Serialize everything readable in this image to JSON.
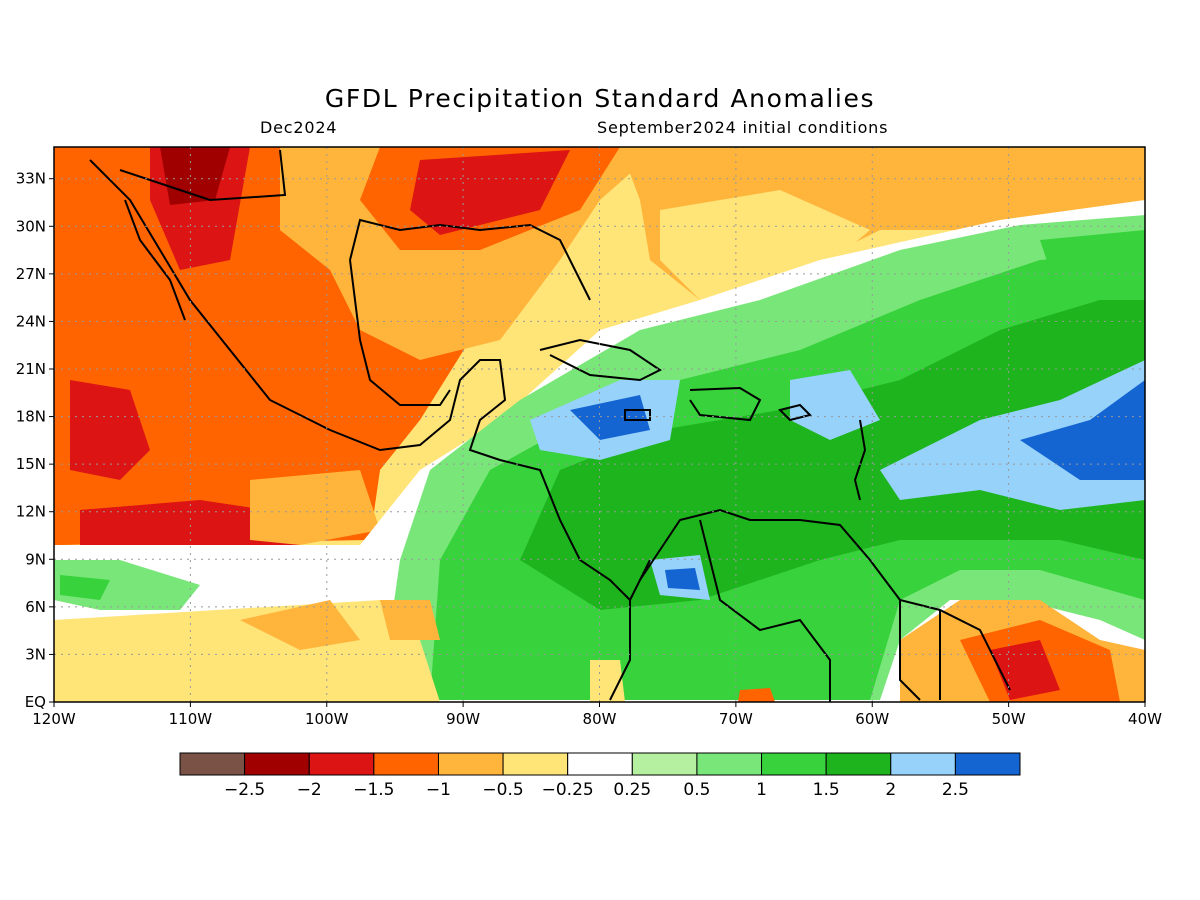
{
  "title": "GFDL Precipitation Standard Anomalies",
  "subtitle_left": "Dec2024",
  "subtitle_right": "September2024 initial conditions",
  "map": {
    "lon_range": [
      -120,
      -40
    ],
    "lat_range": [
      0,
      35
    ],
    "x_ticks": [
      "120W",
      "110W",
      "100W",
      "90W",
      "80W",
      "70W",
      "60W",
      "50W",
      "40W"
    ],
    "y_ticks": [
      "EQ",
      "3N",
      "6N",
      "9N",
      "12N",
      "15N",
      "18N",
      "21N",
      "24N",
      "27N",
      "30N",
      "33N"
    ],
    "grid": "dotted"
  },
  "colorbar": {
    "colors": [
      "#7a5246",
      "#a00000",
      "#dc1414",
      "#ff6400",
      "#ffb43c",
      "#ffe478",
      "#ffffff",
      "#b4f0a0",
      "#78e678",
      "#37d23c",
      "#1eb41e",
      "#96d2fa",
      "#1464d2"
    ],
    "labels": [
      "−2.5",
      "−2",
      "−1.5",
      "−1",
      "−0.5",
      "−0.25",
      "0.25",
      "0.5",
      "1",
      "1.5",
      "2",
      "2.5"
    ]
  }
}
